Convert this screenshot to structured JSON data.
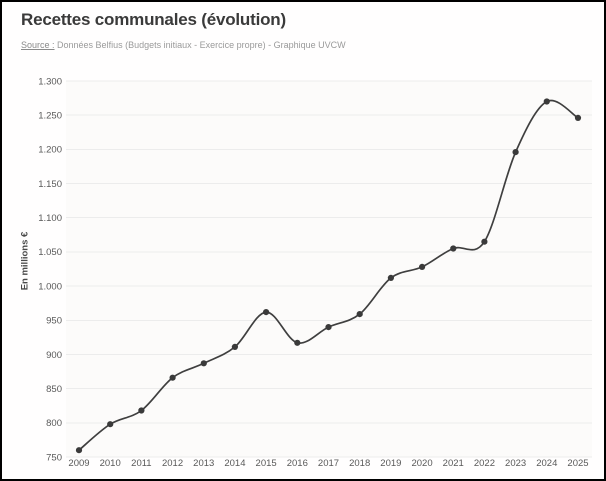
{
  "header": {
    "title": "Recettes communales (évolution)",
    "source_label": "Source :",
    "source_text": " Données Belfius (Budgets initiaux - Exercice propre) - Graphique UVCW"
  },
  "chart_data": {
    "type": "line",
    "title": "Recettes communales (évolution)",
    "source": "Source : Données Belfius (Budgets initiaux - Exercice propre) - Graphique UVCW",
    "xlabel": "",
    "ylabel": "En millions €",
    "categories": [
      "2009",
      "2010",
      "2011",
      "2012",
      "2013",
      "2014",
      "2015",
      "2016",
      "2017",
      "2018",
      "2019",
      "2020",
      "2021",
      "2022",
      "2023",
      "2024",
      "2025"
    ],
    "series": [
      {
        "name": "Recettes communales",
        "values": [
          760,
          798,
          818,
          866,
          887,
          911,
          962,
          917,
          940,
          959,
          1012,
          1028,
          1055,
          1065,
          1196,
          1270,
          1246
        ]
      }
    ],
    "ylim": [
      750,
      1300
    ],
    "ytick_interval": 50,
    "ytick_labels": [
      "750",
      "800",
      "850",
      "900",
      "950",
      "1.000",
      "1.050",
      "1.100",
      "1.150",
      "1.200",
      "1.250",
      "1.300"
    ],
    "grid": "horizontal",
    "legend": "none",
    "marker": "circle",
    "colors": {
      "line": "#3f3f3f",
      "marker": "#3a3a3a",
      "grid": "#ececec",
      "tick_text": "#595959",
      "plot_background": "#fcfbfa"
    }
  }
}
